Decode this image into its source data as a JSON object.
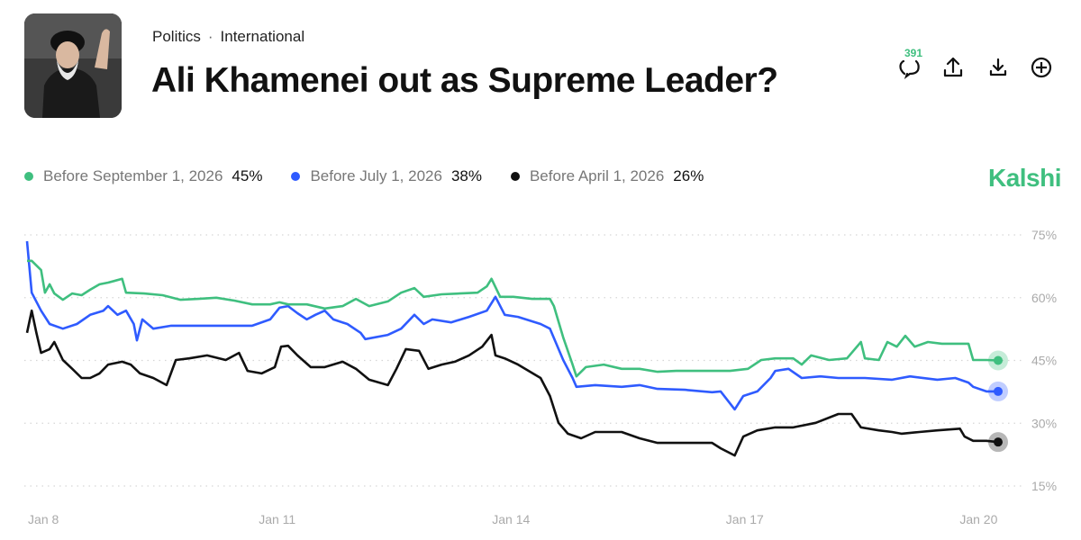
{
  "header": {
    "breadcrumb": [
      "Politics",
      "International"
    ],
    "separator": "·",
    "title": "Ali Khamenei out as Supreme Leader?",
    "comment_count": "391",
    "icons": [
      "comment-icon",
      "share-icon",
      "download-icon",
      "add-icon"
    ]
  },
  "brand": "Kalshi",
  "colors": {
    "green": "#3fbf7f",
    "blue": "#2f5bff",
    "black": "#111111",
    "grid": "#d6d6d6"
  },
  "chart_data": {
    "type": "line",
    "title": "Ali Khamenei out as Supreme Leader?",
    "xlabel": "",
    "ylabel": "",
    "x_unit": "day of January",
    "xlim": [
      7.79,
      20.25
    ],
    "ylim": [
      15,
      75
    ],
    "y_ticks": [
      75,
      60,
      45,
      30,
      15
    ],
    "y_tick_labels": [
      "75%",
      "60%",
      "45%",
      "30%",
      "15%"
    ],
    "x_ticks": [
      8,
      11,
      14,
      17,
      20
    ],
    "x_tick_labels": [
      "Jan 8",
      "Jan 11",
      "Jan 14",
      "Jan 17",
      "Jan 20"
    ],
    "grid": "horizontal dotted",
    "legend_position": "top-left",
    "series": [
      {
        "name": "Before September 1, 2026",
        "current": "45%",
        "color": "#3fbf7f",
        "points": [
          [
            7.79,
            68.8
          ],
          [
            7.85,
            68.8
          ],
          [
            7.97,
            66.6
          ],
          [
            8.02,
            61.2
          ],
          [
            8.08,
            63.2
          ],
          [
            8.14,
            61.0
          ],
          [
            8.25,
            59.5
          ],
          [
            8.37,
            61.0
          ],
          [
            8.49,
            60.6
          ],
          [
            8.6,
            61.9
          ],
          [
            8.72,
            63.2
          ],
          [
            8.83,
            63.6
          ],
          [
            9.01,
            64.5
          ],
          [
            9.06,
            61.2
          ],
          [
            9.29,
            61.0
          ],
          [
            9.53,
            60.6
          ],
          [
            9.76,
            59.5
          ],
          [
            9.99,
            59.7
          ],
          [
            10.22,
            60.0
          ],
          [
            10.45,
            59.3
          ],
          [
            10.68,
            58.4
          ],
          [
            10.91,
            58.4
          ],
          [
            11.03,
            58.9
          ],
          [
            11.14,
            58.4
          ],
          [
            11.38,
            58.4
          ],
          [
            11.61,
            57.4
          ],
          [
            11.84,
            58.0
          ],
          [
            12.01,
            59.7
          ],
          [
            12.18,
            58.0
          ],
          [
            12.42,
            59.1
          ],
          [
            12.59,
            61.2
          ],
          [
            12.76,
            62.3
          ],
          [
            12.88,
            60.2
          ],
          [
            13.11,
            60.8
          ],
          [
            13.34,
            61.0
          ],
          [
            13.57,
            61.2
          ],
          [
            13.69,
            62.7
          ],
          [
            13.75,
            64.5
          ],
          [
            13.86,
            60.2
          ],
          [
            14.03,
            60.2
          ],
          [
            14.27,
            59.7
          ],
          [
            14.5,
            59.7
          ],
          [
            14.55,
            58.0
          ],
          [
            14.67,
            50.5
          ],
          [
            14.79,
            44.0
          ],
          [
            14.84,
            41.2
          ],
          [
            14.96,
            43.4
          ],
          [
            15.19,
            44.0
          ],
          [
            15.42,
            43.0
          ],
          [
            15.65,
            43.0
          ],
          [
            15.88,
            42.3
          ],
          [
            16.12,
            42.5
          ],
          [
            16.46,
            42.5
          ],
          [
            16.81,
            42.5
          ],
          [
            17.04,
            43.0
          ],
          [
            17.21,
            45.1
          ],
          [
            17.39,
            45.5
          ],
          [
            17.62,
            45.5
          ],
          [
            17.73,
            44.0
          ],
          [
            17.85,
            46.2
          ],
          [
            18.08,
            45.1
          ],
          [
            18.31,
            45.5
          ],
          [
            18.49,
            49.4
          ],
          [
            18.54,
            45.5
          ],
          [
            18.72,
            45.1
          ],
          [
            18.83,
            49.4
          ],
          [
            18.95,
            48.3
          ],
          [
            19.06,
            50.9
          ],
          [
            19.18,
            48.3
          ],
          [
            19.35,
            49.4
          ],
          [
            19.53,
            49.0
          ],
          [
            19.7,
            49.0
          ],
          [
            19.87,
            49.0
          ],
          [
            19.93,
            45.1
          ],
          [
            20.1,
            45.1
          ],
          [
            20.25,
            45.0
          ]
        ]
      },
      {
        "name": "Before July 1, 2026",
        "current": "38%",
        "color": "#2f5bff",
        "points": [
          [
            7.79,
            73.5
          ],
          [
            7.85,
            61.2
          ],
          [
            7.97,
            56.9
          ],
          [
            8.08,
            53.7
          ],
          [
            8.25,
            52.6
          ],
          [
            8.43,
            53.7
          ],
          [
            8.6,
            55.9
          ],
          [
            8.77,
            56.9
          ],
          [
            8.83,
            58.0
          ],
          [
            8.95,
            55.9
          ],
          [
            9.06,
            56.9
          ],
          [
            9.16,
            53.7
          ],
          [
            9.2,
            49.8
          ],
          [
            9.27,
            54.8
          ],
          [
            9.41,
            52.6
          ],
          [
            9.64,
            53.3
          ],
          [
            9.87,
            53.3
          ],
          [
            10.1,
            53.3
          ],
          [
            10.45,
            53.3
          ],
          [
            10.68,
            53.3
          ],
          [
            10.91,
            54.8
          ],
          [
            11.03,
            57.6
          ],
          [
            11.14,
            58.0
          ],
          [
            11.26,
            56.3
          ],
          [
            11.38,
            54.8
          ],
          [
            11.49,
            55.9
          ],
          [
            11.61,
            56.9
          ],
          [
            11.72,
            54.8
          ],
          [
            11.9,
            53.7
          ],
          [
            12.07,
            51.6
          ],
          [
            12.13,
            50.1
          ],
          [
            12.42,
            51.1
          ],
          [
            12.59,
            52.6
          ],
          [
            12.76,
            55.9
          ],
          [
            12.88,
            53.7
          ],
          [
            12.99,
            54.8
          ],
          [
            13.23,
            54.1
          ],
          [
            13.46,
            55.4
          ],
          [
            13.69,
            56.9
          ],
          [
            13.8,
            60.2
          ],
          [
            13.92,
            55.9
          ],
          [
            14.09,
            55.4
          ],
          [
            14.38,
            53.7
          ],
          [
            14.5,
            52.6
          ],
          [
            14.67,
            45.1
          ],
          [
            14.79,
            40.8
          ],
          [
            14.84,
            38.7
          ],
          [
            15.08,
            39.1
          ],
          [
            15.42,
            38.7
          ],
          [
            15.65,
            39.1
          ],
          [
            15.88,
            38.2
          ],
          [
            16.23,
            38.0
          ],
          [
            16.58,
            37.4
          ],
          [
            16.69,
            37.6
          ],
          [
            16.87,
            33.3
          ],
          [
            16.98,
            36.5
          ],
          [
            17.16,
            37.6
          ],
          [
            17.33,
            40.8
          ],
          [
            17.39,
            42.5
          ],
          [
            17.56,
            43.0
          ],
          [
            17.73,
            40.8
          ],
          [
            17.97,
            41.2
          ],
          [
            18.2,
            40.8
          ],
          [
            18.54,
            40.8
          ],
          [
            18.89,
            40.4
          ],
          [
            19.12,
            41.2
          ],
          [
            19.47,
            40.4
          ],
          [
            19.7,
            40.8
          ],
          [
            19.87,
            39.7
          ],
          [
            19.93,
            38.7
          ],
          [
            20.1,
            37.6
          ],
          [
            20.25,
            37.6
          ]
        ]
      },
      {
        "name": "Before April 1, 2026",
        "current": "26%",
        "color": "#111111",
        "points": [
          [
            7.79,
            51.6
          ],
          [
            7.85,
            56.9
          ],
          [
            7.91,
            51.6
          ],
          [
            7.97,
            46.8
          ],
          [
            8.08,
            47.7
          ],
          [
            8.14,
            49.4
          ],
          [
            8.25,
            45.1
          ],
          [
            8.37,
            43.0
          ],
          [
            8.49,
            40.8
          ],
          [
            8.6,
            40.8
          ],
          [
            8.72,
            41.9
          ],
          [
            8.83,
            44.0
          ],
          [
            9.01,
            44.7
          ],
          [
            9.12,
            44.0
          ],
          [
            9.24,
            41.9
          ],
          [
            9.41,
            40.8
          ],
          [
            9.58,
            39.1
          ],
          [
            9.7,
            45.1
          ],
          [
            9.87,
            45.5
          ],
          [
            10.1,
            46.2
          ],
          [
            10.34,
            45.1
          ],
          [
            10.51,
            46.8
          ],
          [
            10.62,
            42.5
          ],
          [
            10.8,
            41.9
          ],
          [
            10.97,
            43.4
          ],
          [
            11.05,
            48.3
          ],
          [
            11.14,
            48.5
          ],
          [
            11.26,
            46.2
          ],
          [
            11.43,
            43.4
          ],
          [
            11.61,
            43.4
          ],
          [
            11.84,
            44.7
          ],
          [
            12.01,
            43.0
          ],
          [
            12.18,
            40.4
          ],
          [
            12.42,
            39.1
          ],
          [
            12.53,
            43.0
          ],
          [
            12.65,
            47.7
          ],
          [
            12.82,
            47.3
          ],
          [
            12.94,
            43.0
          ],
          [
            13.11,
            44.0
          ],
          [
            13.28,
            44.7
          ],
          [
            13.46,
            46.2
          ],
          [
            13.63,
            48.3
          ],
          [
            13.75,
            51.1
          ],
          [
            13.8,
            46.2
          ],
          [
            13.92,
            45.5
          ],
          [
            14.09,
            44.0
          ],
          [
            14.38,
            40.8
          ],
          [
            14.5,
            36.5
          ],
          [
            14.61,
            30.1
          ],
          [
            14.73,
            27.5
          ],
          [
            14.9,
            26.4
          ],
          [
            15.08,
            27.9
          ],
          [
            15.42,
            27.9
          ],
          [
            15.65,
            26.4
          ],
          [
            15.88,
            25.3
          ],
          [
            16.23,
            25.3
          ],
          [
            16.58,
            25.3
          ],
          [
            16.69,
            24.0
          ],
          [
            16.87,
            22.3
          ],
          [
            16.98,
            26.8
          ],
          [
            17.16,
            28.3
          ],
          [
            17.39,
            29.0
          ],
          [
            17.62,
            29.0
          ],
          [
            17.91,
            30.1
          ],
          [
            18.2,
            32.2
          ],
          [
            18.37,
            32.2
          ],
          [
            18.49,
            29.0
          ],
          [
            18.72,
            28.3
          ],
          [
            18.89,
            27.9
          ],
          [
            19.01,
            27.5
          ],
          [
            19.24,
            27.9
          ],
          [
            19.47,
            28.3
          ],
          [
            19.76,
            28.7
          ],
          [
            19.82,
            26.8
          ],
          [
            19.93,
            25.8
          ],
          [
            20.1,
            25.8
          ],
          [
            20.25,
            25.5
          ]
        ]
      }
    ]
  }
}
